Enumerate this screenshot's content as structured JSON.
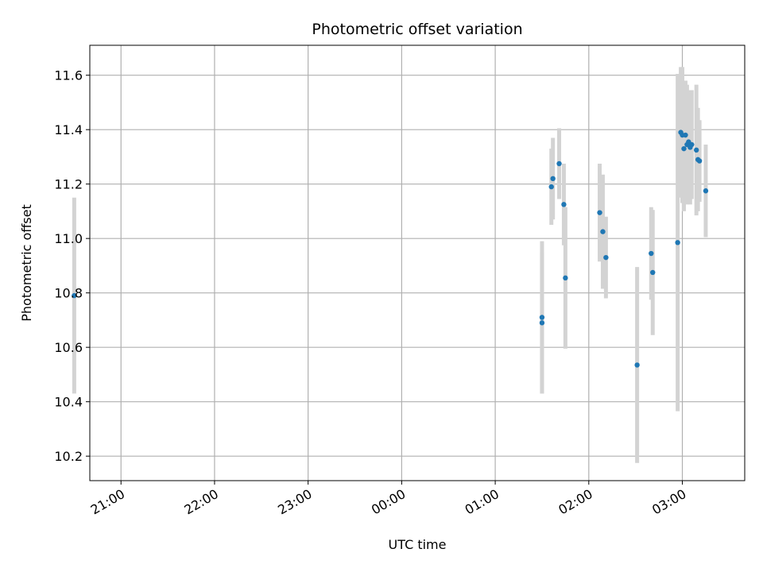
{
  "chart_data": {
    "type": "scatter",
    "title": "Photometric offset variation",
    "xlabel": "UTC time",
    "ylabel": "Photometric offset",
    "x_axis_type": "time",
    "xlim": [
      "20:40",
      "03:40"
    ],
    "ylim": [
      10.11,
      11.71
    ],
    "grid": true,
    "x_ticks": [
      "21:00",
      "22:00",
      "23:00",
      "00:00",
      "01:00",
      "02:00",
      "03:00"
    ],
    "y_ticks": [
      10.2,
      10.4,
      10.6,
      10.8,
      11.0,
      11.2,
      11.4,
      11.6
    ],
    "colors": {
      "marker": "#1f77b4",
      "errorbar": "#d3d3d3",
      "grid": "#b0b0b0"
    },
    "points": [
      {
        "x": "20:30",
        "y": 10.79,
        "err": 0.36
      },
      {
        "x": "01:30",
        "y": 10.71,
        "err": 0.28
      },
      {
        "x": "01:30",
        "y": 10.69,
        "err": 0.26
      },
      {
        "x": "01:36",
        "y": 11.19,
        "err": 0.14
      },
      {
        "x": "01:37",
        "y": 11.22,
        "err": 0.15
      },
      {
        "x": "01:41",
        "y": 11.275,
        "err": 0.13
      },
      {
        "x": "01:44",
        "y": 11.125,
        "err": 0.15
      },
      {
        "x": "01:45",
        "y": 10.855,
        "err": 0.26
      },
      {
        "x": "02:07",
        "y": 11.095,
        "err": 0.18
      },
      {
        "x": "02:09",
        "y": 11.025,
        "err": 0.21
      },
      {
        "x": "02:11",
        "y": 10.93,
        "err": 0.15
      },
      {
        "x": "02:31",
        "y": 10.535,
        "err": 0.36
      },
      {
        "x": "02:40",
        "y": 10.945,
        "err": 0.17
      },
      {
        "x": "02:41",
        "y": 10.875,
        "err": 0.23
      },
      {
        "x": "02:57",
        "y": 10.985,
        "err": 0.62
      },
      {
        "x": "02:59",
        "y": 11.39,
        "err": 0.24
      },
      {
        "x": "03:00",
        "y": 11.38,
        "err": 0.25
      },
      {
        "x": "03:01",
        "y": 11.33,
        "err": 0.23
      },
      {
        "x": "03:02",
        "y": 11.38,
        "err": 0.2
      },
      {
        "x": "03:03",
        "y": 11.345,
        "err": 0.22
      },
      {
        "x": "03:04",
        "y": 11.355,
        "err": 0.19
      },
      {
        "x": "03:05",
        "y": 11.335,
        "err": 0.21
      },
      {
        "x": "03:06",
        "y": 11.345,
        "err": 0.2
      },
      {
        "x": "03:09",
        "y": 11.325,
        "err": 0.24
      },
      {
        "x": "03:10",
        "y": 11.29,
        "err": 0.19
      },
      {
        "x": "03:11",
        "y": 11.285,
        "err": 0.15
      },
      {
        "x": "03:15",
        "y": 11.175,
        "err": 0.17
      }
    ]
  }
}
